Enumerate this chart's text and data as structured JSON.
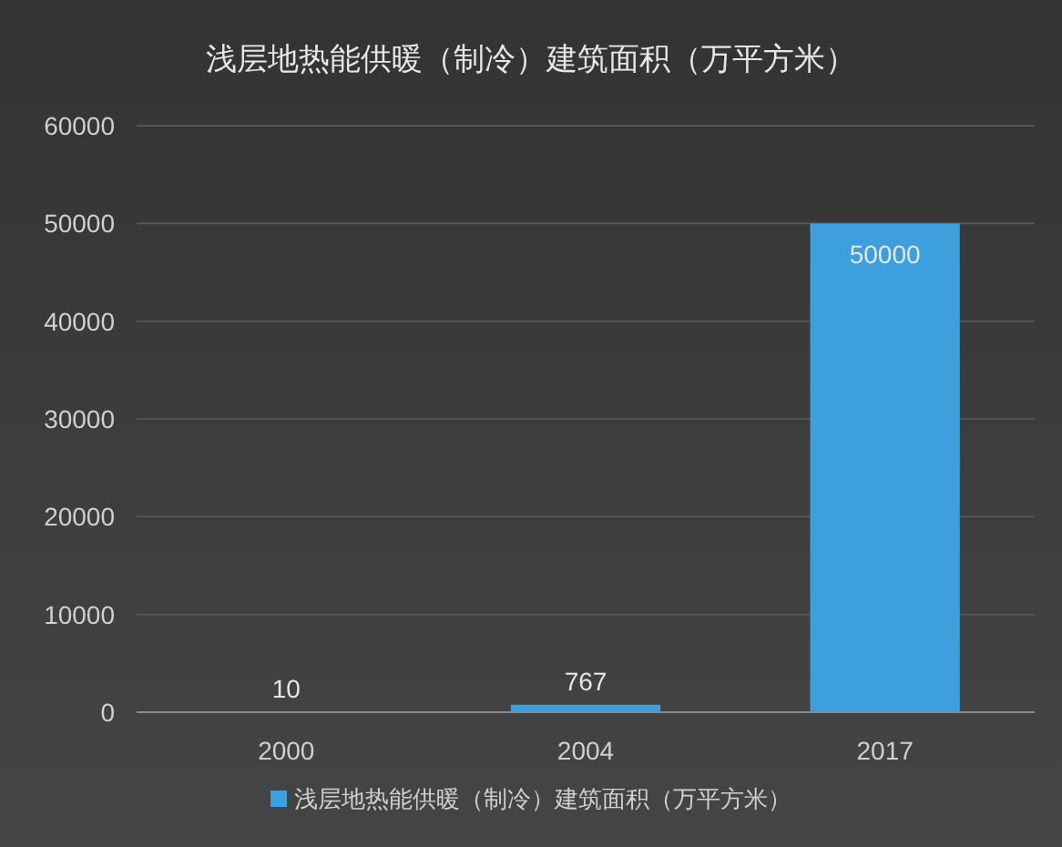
{
  "chart_data": {
    "type": "bar",
    "title": "浅层地热能供暖（制冷）建筑面积（万平方米）",
    "categories": [
      "2000",
      "2004",
      "2017"
    ],
    "series": [
      {
        "name": "浅层地热能供暖（制冷）建筑面积（万平方米）",
        "color": "#3d9fdc",
        "values": [
          10,
          767,
          50000
        ]
      }
    ],
    "ylim": [
      0,
      60000
    ],
    "yticks": [
      0,
      10000,
      20000,
      30000,
      40000,
      50000,
      60000
    ],
    "grid": "y",
    "legend": "bottom",
    "data_labels": true
  }
}
